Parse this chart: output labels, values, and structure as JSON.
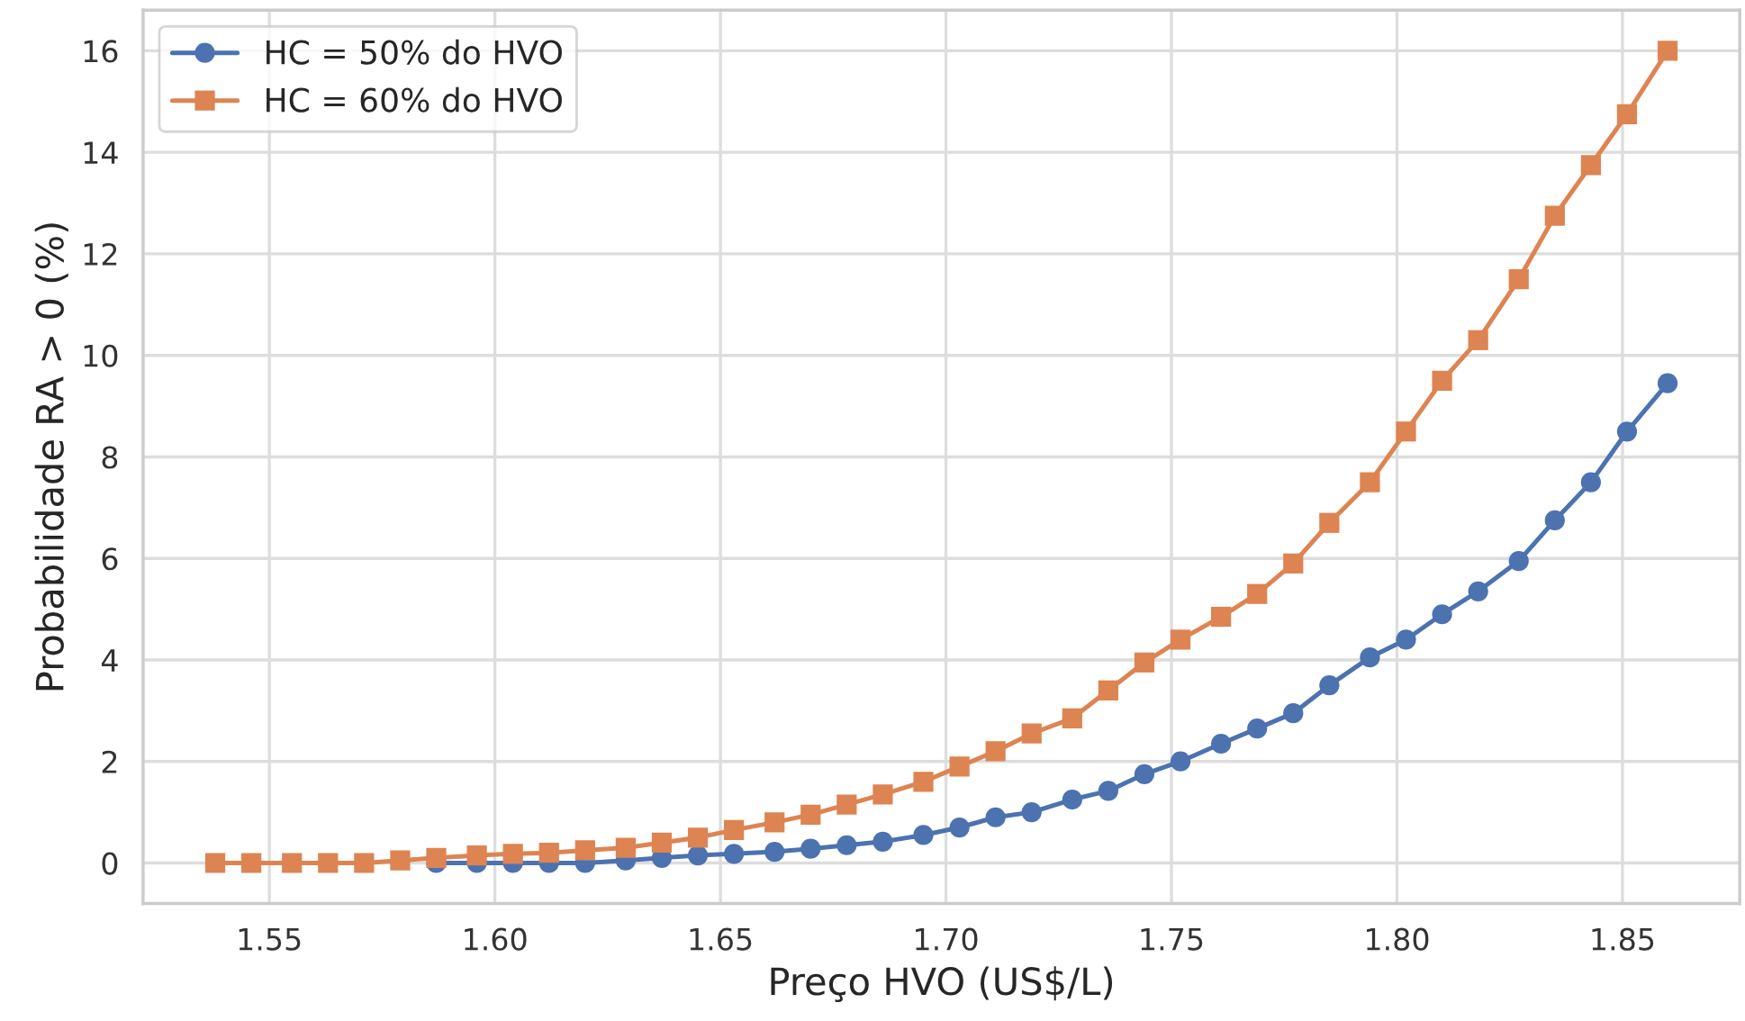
{
  "chart_data": {
    "type": "line",
    "xlabel": "Preço HVO (US$/L)",
    "ylabel": "Probabilidade RA > 0 (%)",
    "x": [
      1.538,
      1.546,
      1.555,
      1.563,
      1.571,
      1.579,
      1.587,
      1.596,
      1.604,
      1.612,
      1.62,
      1.629,
      1.637,
      1.645,
      1.653,
      1.662,
      1.67,
      1.678,
      1.686,
      1.695,
      1.703,
      1.711,
      1.719,
      1.728,
      1.736,
      1.744,
      1.752,
      1.761,
      1.769,
      1.777,
      1.785,
      1.794,
      1.802,
      1.81,
      1.818,
      1.827,
      1.835,
      1.843,
      1.851,
      1.86
    ],
    "series": [
      {
        "name": "HC = 50% do HVO",
        "color": "#4c72b0",
        "marker": "circle",
        "values": [
          null,
          null,
          null,
          null,
          null,
          null,
          0,
          0,
          0,
          0,
          0,
          0.05,
          0.1,
          0.15,
          0.18,
          0.22,
          0.28,
          0.35,
          0.42,
          0.55,
          0.7,
          0.9,
          1.0,
          1.25,
          1.42,
          1.75,
          2.0,
          2.35,
          2.65,
          2.95,
          3.5,
          4.05,
          4.4,
          4.9,
          5.35,
          5.95,
          6.75,
          7.5,
          8.5,
          9.45
        ]
      },
      {
        "name": "HC = 60% do HVO",
        "color": "#dd8452",
        "marker": "square",
        "values": [
          0,
          0,
          0,
          0,
          0,
          0.05,
          0.1,
          0.15,
          0.18,
          0.2,
          0.25,
          0.3,
          0.4,
          0.5,
          0.65,
          0.8,
          0.95,
          1.15,
          1.35,
          1.6,
          1.9,
          2.2,
          2.55,
          2.85,
          3.4,
          3.95,
          4.4,
          4.85,
          5.3,
          5.9,
          6.7,
          7.5,
          8.5,
          9.5,
          10.3,
          11.5,
          12.75,
          13.75,
          14.75,
          16.0
        ]
      }
    ],
    "xlim": [
      1.522,
      1.876
    ],
    "ylim": [
      -0.8,
      16.8
    ],
    "xticks": [
      {
        "value": 1.55,
        "label": "1.55"
      },
      {
        "value": 1.6,
        "label": "1.60"
      },
      {
        "value": 1.65,
        "label": "1.65"
      },
      {
        "value": 1.7,
        "label": "1.70"
      },
      {
        "value": 1.75,
        "label": "1.75"
      },
      {
        "value": 1.8,
        "label": "1.80"
      },
      {
        "value": 1.85,
        "label": "1.85"
      }
    ],
    "yticks": [
      0,
      2,
      4,
      6,
      8,
      10,
      12,
      14,
      16
    ],
    "grid": true,
    "legend": "top left",
    "line_style": "solid"
  }
}
